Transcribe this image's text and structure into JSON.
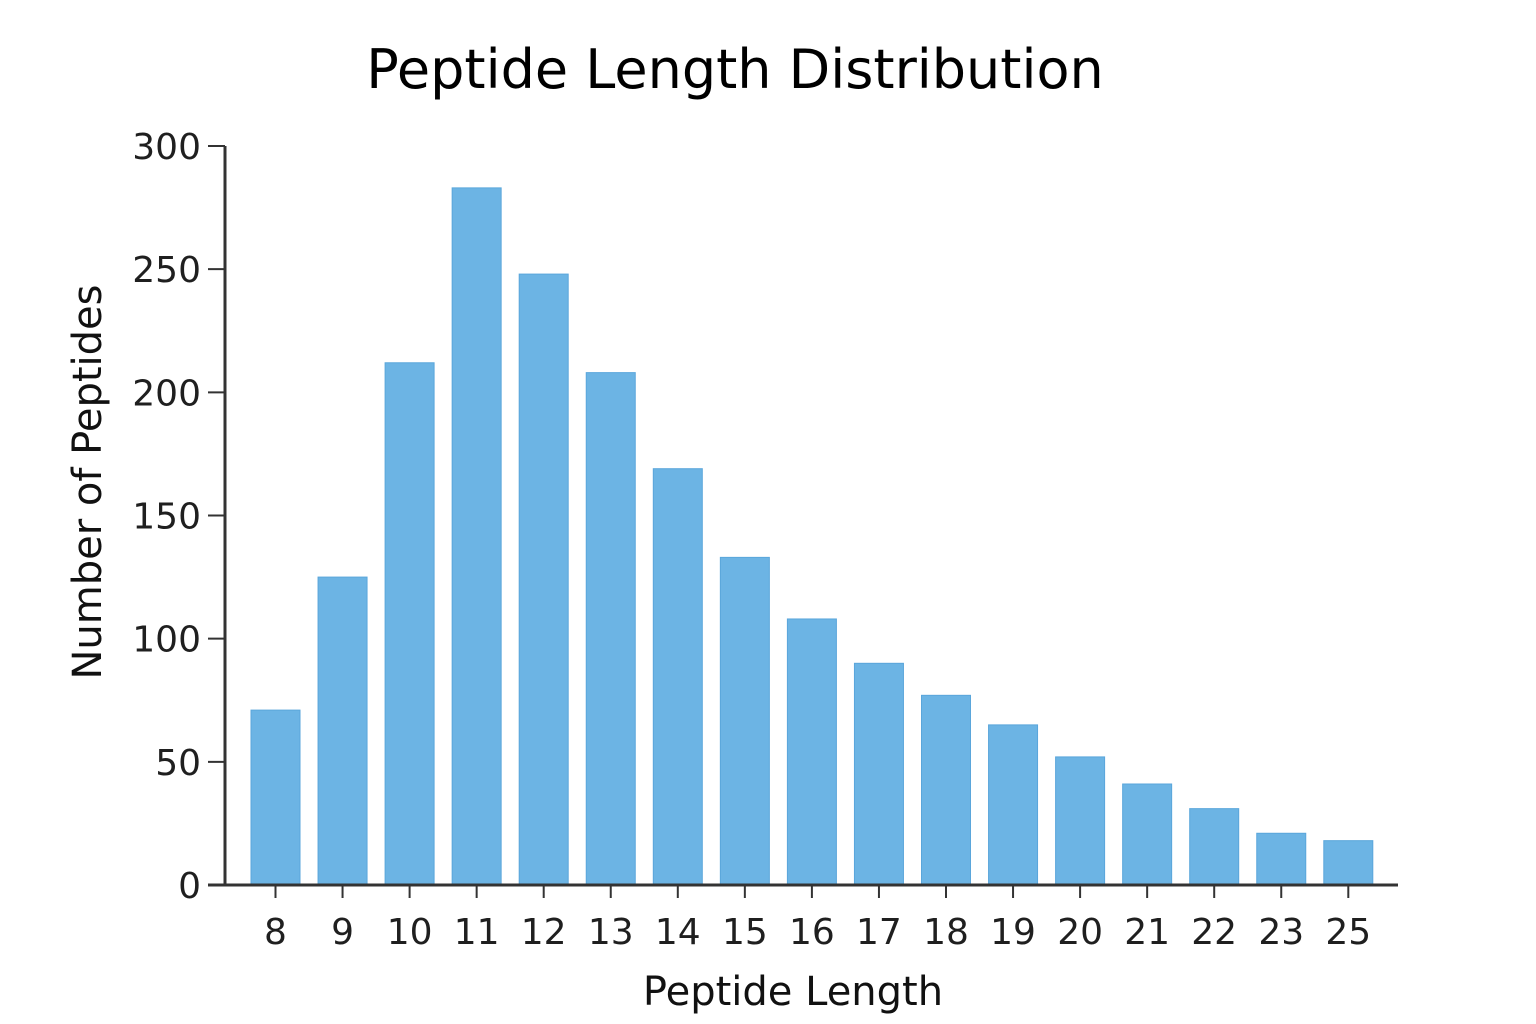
{
  "chart_data": {
    "type": "bar",
    "title": "Peptide Length Distribution",
    "xlabel": "Peptide Length",
    "ylabel": "Number of Peptides",
    "categories": [
      "8",
      "9",
      "10",
      "11",
      "12",
      "13",
      "14",
      "15",
      "16",
      "17",
      "18",
      "19",
      "20",
      "21",
      "22",
      "23",
      "25"
    ],
    "values": [
      71,
      125,
      212,
      283,
      248,
      208,
      169,
      133,
      108,
      90,
      77,
      65,
      52,
      41,
      31,
      21,
      18
    ],
    "ylim": [
      0,
      300
    ],
    "yticks": [
      "0",
      "50",
      "100",
      "150",
      "200",
      "250",
      "300"
    ],
    "grid": false,
    "bar_color": "#6cb4e4",
    "bar_edge_color": "#5aa6db"
  }
}
